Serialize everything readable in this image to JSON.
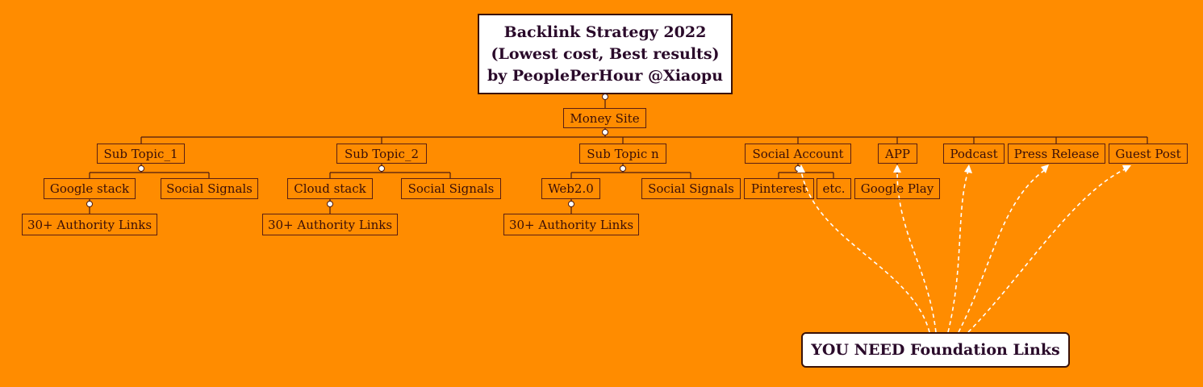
{
  "title": {
    "line1": "Backlink Strategy 2022",
    "line2": "(Lowest cost, Best results)",
    "line3": "by PeoplePerHour @Xiaopu"
  },
  "root": "Money Site",
  "branches": [
    {
      "label": "Sub Topic_1"
    },
    {
      "label": "Sub Topic_2"
    },
    {
      "label": "Sub Topic n"
    },
    {
      "label": "Social Account"
    },
    {
      "label": "APP"
    },
    {
      "label": "Podcast"
    },
    {
      "label": "Press Release"
    },
    {
      "label": "Guest Post"
    }
  ],
  "sub_nodes": {
    "google_stack": "Google stack",
    "social_signals_1": "Social Signals",
    "cloud_stack": "Cloud stack",
    "social_signals_2": "Social Signals",
    "web20": "Web2.0",
    "social_signals_3": "Social Signals",
    "pinterest": "Pinterest",
    "etc": "etc.",
    "google_play": "Google Play",
    "authority_1": "30+ Authority Links",
    "authority_2": "30+ Authority Links",
    "authority_3": "30+ Authority Links"
  },
  "callout": "YOU NEED Foundation Links",
  "colors": {
    "background": "#FF8C00",
    "border": "#5a1e14",
    "text": "#3a0f08",
    "arrow": "#ffffff"
  }
}
